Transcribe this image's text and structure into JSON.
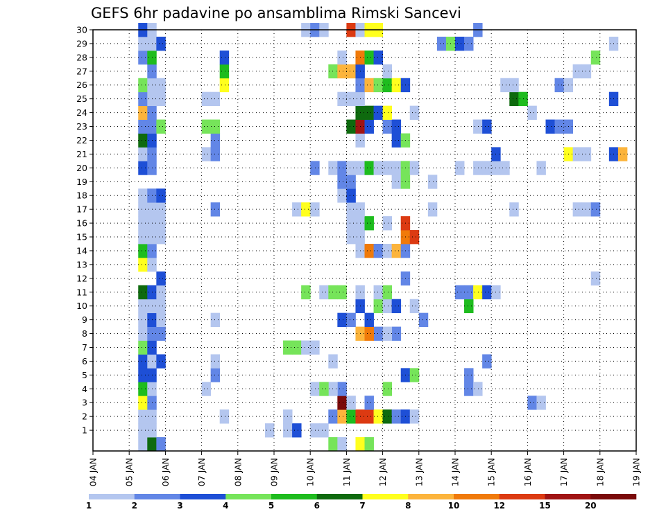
{
  "title": "GEFS 6hr padavine po ansamblima Rimski Sancevi",
  "colors": {
    "background": "#ffffff",
    "frame": "#000000",
    "levels": [
      "#b4c6ef",
      "#6286e6",
      "#1e4fd6",
      "#76e45a",
      "#1ebc1e",
      "#0e6a0e",
      "#ffff1e",
      "#fcb43c",
      "#f07a0a",
      "#dc3a12",
      "#a01414",
      "#7a0a0a"
    ]
  },
  "chart_data": {
    "type": "heatmap",
    "title": "GEFS 6hr padavine po ansamblima Rimski Sancevi",
    "x_ticks": [
      "04 JAN",
      "05 JAN",
      "06 JAN",
      "07 JAN",
      "08 JAN",
      "09 JAN",
      "10 JAN",
      "11 JAN",
      "12 JAN",
      "13 JAN",
      "14 JAN",
      "15 JAN",
      "16 JAN",
      "17 JAN",
      "18 JAN",
      "19 JAN"
    ],
    "y_ticks": [
      "1",
      "2",
      "3",
      "4",
      "5",
      "6",
      "7",
      "8",
      "9",
      "10",
      "11",
      "12",
      "13",
      "14",
      "15",
      "16",
      "17",
      "18",
      "19",
      "20",
      "21",
      "22",
      "23",
      "24",
      "25",
      "26",
      "27",
      "28",
      "29",
      "30"
    ],
    "xlim": [
      "04 JAN 00",
      "19 JAN 00"
    ],
    "ylim": [
      0,
      30
    ],
    "time_step_hours": 6,
    "grid": true,
    "colorbar": {
      "levels": [
        "1",
        "2",
        "3",
        "4",
        "5",
        "6",
        "7",
        "8",
        "10",
        "12",
        "15",
        "20"
      ],
      "position": "bottom"
    },
    "note_cells": "each cell: [ensemble member row, 6h step index from 04 JAN 00, color level index 1-12]",
    "cells": [
      [
        0,
        5,
        1
      ],
      [
        0,
        6,
        6
      ],
      [
        0,
        7,
        2
      ],
      [
        0,
        26,
        4
      ],
      [
        0,
        27,
        1
      ],
      [
        0,
        29,
        7
      ],
      [
        0,
        30,
        4
      ],
      [
        1,
        5,
        1
      ],
      [
        1,
        6,
        1
      ],
      [
        1,
        19,
        1
      ],
      [
        1,
        21,
        1
      ],
      [
        1,
        24,
        1
      ],
      [
        1,
        25,
        1
      ],
      [
        1,
        22,
        3
      ],
      [
        2,
        5,
        1
      ],
      [
        2,
        6,
        1
      ],
      [
        2,
        21,
        1
      ],
      [
        2,
        26,
        2
      ],
      [
        2,
        27,
        8
      ],
      [
        2,
        28,
        5
      ],
      [
        2,
        29,
        10
      ],
      [
        2,
        30,
        10
      ],
      [
        2,
        31,
        7
      ],
      [
        2,
        32,
        6
      ],
      [
        2,
        33,
        2
      ],
      [
        2,
        34,
        3
      ],
      [
        2,
        35,
        1
      ],
      [
        2,
        14,
        1
      ],
      [
        3,
        5,
        7
      ],
      [
        3,
        6,
        2
      ],
      [
        3,
        27,
        12
      ],
      [
        3,
        28,
        1
      ],
      [
        3,
        30,
        2
      ],
      [
        3,
        48,
        2
      ],
      [
        3,
        49,
        1
      ],
      [
        4,
        5,
        5
      ],
      [
        4,
        6,
        1
      ],
      [
        4,
        27,
        2
      ],
      [
        4,
        26,
        1
      ],
      [
        4,
        32,
        4
      ],
      [
        4,
        12,
        1
      ],
      [
        4,
        24,
        1
      ],
      [
        4,
        25,
        4
      ],
      [
        4,
        41,
        2
      ],
      [
        4,
        42,
        1
      ],
      [
        5,
        5,
        3
      ],
      [
        5,
        6,
        3
      ],
      [
        5,
        13,
        2
      ],
      [
        5,
        41,
        2
      ],
      [
        5,
        34,
        3
      ],
      [
        5,
        35,
        4
      ],
      [
        6,
        5,
        3
      ],
      [
        6,
        6,
        1
      ],
      [
        6,
        13,
        1
      ],
      [
        6,
        26,
        1
      ],
      [
        6,
        43,
        2
      ],
      [
        6,
        7,
        3
      ],
      [
        7,
        5,
        4
      ],
      [
        7,
        6,
        3
      ],
      [
        7,
        21,
        4
      ],
      [
        7,
        22,
        4
      ],
      [
        7,
        23,
        1
      ],
      [
        7,
        24,
        1
      ],
      [
        8,
        5,
        1
      ],
      [
        8,
        6,
        2
      ],
      [
        8,
        7,
        2
      ],
      [
        8,
        31,
        2
      ],
      [
        8,
        33,
        2
      ],
      [
        8,
        29,
        8
      ],
      [
        8,
        30,
        9
      ],
      [
        8,
        32,
        1
      ],
      [
        9,
        5,
        1
      ],
      [
        9,
        6,
        3
      ],
      [
        9,
        7,
        1
      ],
      [
        9,
        13,
        1
      ],
      [
        9,
        27,
        3
      ],
      [
        9,
        28,
        2
      ],
      [
        9,
        30,
        3
      ],
      [
        9,
        36,
        2
      ],
      [
        10,
        5,
        1
      ],
      [
        10,
        6,
        1
      ],
      [
        10,
        7,
        1
      ],
      [
        10,
        29,
        3
      ],
      [
        10,
        31,
        4
      ],
      [
        10,
        32,
        1
      ],
      [
        10,
        33,
        3
      ],
      [
        10,
        35,
        1
      ],
      [
        10,
        41,
        5
      ],
      [
        11,
        5,
        6
      ],
      [
        11,
        6,
        3
      ],
      [
        11,
        7,
        1
      ],
      [
        11,
        23,
        4
      ],
      [
        11,
        25,
        1
      ],
      [
        11,
        26,
        4
      ],
      [
        11,
        27,
        4
      ],
      [
        11,
        29,
        1
      ],
      [
        11,
        31,
        1
      ],
      [
        11,
        32,
        4
      ],
      [
        11,
        40,
        2
      ],
      [
        11,
        41,
        2
      ],
      [
        11,
        42,
        7
      ],
      [
        11,
        43,
        3
      ],
      [
        11,
        44,
        1
      ],
      [
        12,
        7,
        3
      ],
      [
        12,
        34,
        2
      ],
      [
        12,
        55,
        1
      ],
      [
        13,
        5,
        7
      ],
      [
        13,
        6,
        1
      ],
      [
        14,
        5,
        5
      ],
      [
        14,
        6,
        2
      ],
      [
        14,
        29,
        1
      ],
      [
        14,
        30,
        9
      ],
      [
        14,
        31,
        2
      ],
      [
        14,
        32,
        1
      ],
      [
        14,
        33,
        8
      ],
      [
        14,
        34,
        2
      ],
      [
        15,
        5,
        1
      ],
      [
        15,
        6,
        1
      ],
      [
        15,
        7,
        1
      ],
      [
        15,
        28,
        1
      ],
      [
        15,
        29,
        1
      ],
      [
        15,
        34,
        9
      ],
      [
        15,
        35,
        10
      ],
      [
        16,
        5,
        1
      ],
      [
        16,
        6,
        1
      ],
      [
        16,
        7,
        1
      ],
      [
        16,
        28,
        1
      ],
      [
        16,
        29,
        1
      ],
      [
        16,
        30,
        5
      ],
      [
        16,
        32,
        1
      ],
      [
        16,
        34,
        10
      ],
      [
        17,
        5,
        1
      ],
      [
        17,
        6,
        1
      ],
      [
        17,
        7,
        1
      ],
      [
        17,
        13,
        2
      ],
      [
        17,
        22,
        1
      ],
      [
        17,
        23,
        7
      ],
      [
        17,
        24,
        1
      ],
      [
        17,
        28,
        1
      ],
      [
        17,
        29,
        1
      ],
      [
        17,
        37,
        1
      ],
      [
        17,
        46,
        1
      ],
      [
        17,
        53,
        1
      ],
      [
        17,
        54,
        1
      ],
      [
        17,
        55,
        2
      ],
      [
        18,
        5,
        1
      ],
      [
        18,
        6,
        2
      ],
      [
        18,
        7,
        3
      ],
      [
        18,
        27,
        1
      ],
      [
        18,
        28,
        3
      ],
      [
        19,
        27,
        2
      ],
      [
        19,
        28,
        2
      ],
      [
        19,
        33,
        1
      ],
      [
        19,
        34,
        4
      ],
      [
        19,
        37,
        1
      ],
      [
        20,
        5,
        3
      ],
      [
        20,
        6,
        2
      ],
      [
        20,
        24,
        2
      ],
      [
        20,
        26,
        1
      ],
      [
        20,
        27,
        2
      ],
      [
        20,
        28,
        1
      ],
      [
        20,
        29,
        1
      ],
      [
        20,
        30,
        5
      ],
      [
        20,
        31,
        1
      ],
      [
        20,
        32,
        1
      ],
      [
        20,
        33,
        1
      ],
      [
        20,
        34,
        4
      ],
      [
        20,
        35,
        1
      ],
      [
        20,
        40,
        1
      ],
      [
        20,
        42,
        1
      ],
      [
        20,
        43,
        1
      ],
      [
        20,
        44,
        1
      ],
      [
        20,
        45,
        1
      ],
      [
        20,
        49,
        1
      ],
      [
        21,
        5,
        1
      ],
      [
        21,
        6,
        2
      ],
      [
        21,
        12,
        1
      ],
      [
        21,
        13,
        2
      ],
      [
        21,
        44,
        3
      ],
      [
        21,
        52,
        7
      ],
      [
        21,
        53,
        1
      ],
      [
        21,
        54,
        1
      ],
      [
        21,
        57,
        3
      ],
      [
        21,
        58,
        8
      ],
      [
        22,
        5,
        6
      ],
      [
        22,
        6,
        3
      ],
      [
        22,
        13,
        2
      ],
      [
        22,
        29,
        1
      ],
      [
        22,
        33,
        3
      ],
      [
        22,
        34,
        4
      ],
      [
        23,
        5,
        2
      ],
      [
        23,
        6,
        2
      ],
      [
        23,
        7,
        4
      ],
      [
        23,
        12,
        4
      ],
      [
        23,
        13,
        4
      ],
      [
        23,
        28,
        6
      ],
      [
        23,
        29,
        11
      ],
      [
        23,
        30,
        3
      ],
      [
        23,
        32,
        2
      ],
      [
        23,
        33,
        3
      ],
      [
        23,
        42,
        1
      ],
      [
        23,
        43,
        3
      ],
      [
        23,
        50,
        3
      ],
      [
        23,
        51,
        2
      ],
      [
        23,
        52,
        2
      ],
      [
        24,
        5,
        8
      ],
      [
        24,
        6,
        2
      ],
      [
        24,
        29,
        6
      ],
      [
        24,
        30,
        6
      ],
      [
        24,
        31,
        3
      ],
      [
        24,
        32,
        7
      ],
      [
        24,
        35,
        1
      ],
      [
        24,
        48,
        1
      ],
      [
        25,
        5,
        2
      ],
      [
        25,
        6,
        1
      ],
      [
        25,
        7,
        1
      ],
      [
        25,
        12,
        1
      ],
      [
        25,
        13,
        1
      ],
      [
        25,
        27,
        1
      ],
      [
        25,
        28,
        1
      ],
      [
        25,
        29,
        1
      ],
      [
        25,
        46,
        6
      ],
      [
        25,
        47,
        5
      ],
      [
        25,
        57,
        3
      ],
      [
        26,
        5,
        4
      ],
      [
        26,
        6,
        1
      ],
      [
        26,
        7,
        1
      ],
      [
        26,
        14,
        7
      ],
      [
        26,
        29,
        2
      ],
      [
        26,
        30,
        8
      ],
      [
        26,
        31,
        4
      ],
      [
        26,
        32,
        5
      ],
      [
        26,
        33,
        7
      ],
      [
        26,
        34,
        3
      ],
      [
        26,
        45,
        1
      ],
      [
        26,
        46,
        1
      ],
      [
        26,
        51,
        2
      ],
      [
        26,
        52,
        1
      ],
      [
        27,
        6,
        2
      ],
      [
        27,
        14,
        5
      ],
      [
        27,
        26,
        4
      ],
      [
        27,
        27,
        8
      ],
      [
        27,
        28,
        8
      ],
      [
        27,
        29,
        3
      ],
      [
        27,
        32,
        1
      ],
      [
        27,
        53,
        1
      ],
      [
        27,
        54,
        1
      ],
      [
        28,
        5,
        2
      ],
      [
        28,
        6,
        5
      ],
      [
        28,
        14,
        3
      ],
      [
        28,
        27,
        1
      ],
      [
        28,
        29,
        9
      ],
      [
        28,
        30,
        5
      ],
      [
        28,
        31,
        3
      ],
      [
        28,
        55,
        4
      ],
      [
        29,
        5,
        1
      ],
      [
        29,
        6,
        1
      ],
      [
        29,
        7,
        3
      ],
      [
        29,
        38,
        2
      ],
      [
        29,
        39,
        4
      ],
      [
        29,
        40,
        3
      ],
      [
        29,
        41,
        2
      ],
      [
        29,
        57,
        1
      ],
      [
        30,
        5,
        3
      ],
      [
        30,
        6,
        1
      ],
      [
        30,
        23,
        1
      ],
      [
        30,
        24,
        2
      ],
      [
        30,
        25,
        1
      ],
      [
        30,
        28,
        10
      ],
      [
        30,
        29,
        1
      ],
      [
        30,
        30,
        7
      ],
      [
        30,
        31,
        7
      ],
      [
        30,
        42,
        2
      ]
    ]
  }
}
